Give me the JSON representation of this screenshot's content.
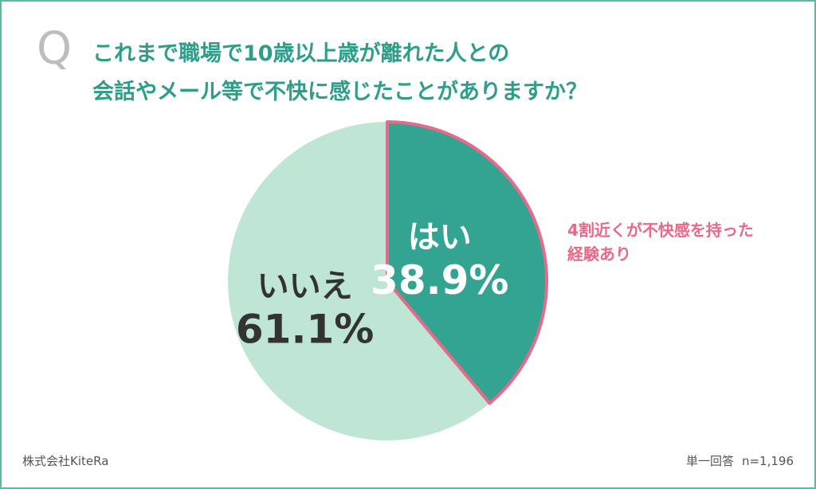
{
  "question": {
    "mark": "Q",
    "line1": "これまで職場で10歳以上歳が離れた人との",
    "line2": "会話やメール等で不快に感じたことがありますか？"
  },
  "annotation": {
    "line1": "4割近くが不快感を持った",
    "line2": "経験あり",
    "color": "#e9698a"
  },
  "footer": {
    "source": "株式会社KiteRa",
    "answer_type": "単一回答",
    "sample_size": "n=1,196"
  },
  "chart_data": {
    "type": "pie",
    "title": "これまで職場で10歳以上歳が離れた人との会話やメール等で不快に感じたことがありますか？",
    "slices": [
      {
        "label": "はい",
        "value": 38.9,
        "value_label": "38.9%",
        "color": "#33a392",
        "label_color": "#ffffff",
        "outline_color": "#e9698a"
      },
      {
        "label": "いいえ",
        "value": 61.1,
        "value_label": "61.1%",
        "color": "#bfe6d4",
        "label_color": "#333333"
      }
    ],
    "start": "12 o'clock",
    "direction": "clockwise",
    "legend": "none"
  }
}
